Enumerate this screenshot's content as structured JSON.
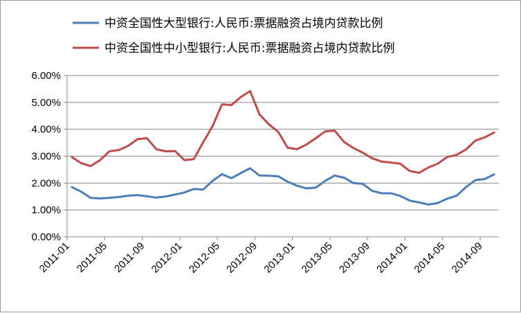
{
  "chart_data": {
    "type": "line",
    "title": "",
    "xlabel": "",
    "ylabel": "",
    "ylim": [
      0,
      0.06
    ],
    "ytick_values": [
      0,
      0.01,
      0.02,
      0.03,
      0.04,
      0.05,
      0.06
    ],
    "ytick_labels": [
      "0.00%",
      "1.00%",
      "2.00%",
      "3.00%",
      "4.00%",
      "5.00%",
      "6.00%"
    ],
    "x": [
      "2011-01",
      "2011-02",
      "2011-03",
      "2011-04",
      "2011-05",
      "2011-06",
      "2011-07",
      "2011-08",
      "2011-09",
      "2011-10",
      "2011-11",
      "2011-12",
      "2012-01",
      "2012-02",
      "2012-03",
      "2012-04",
      "2012-05",
      "2012-06",
      "2012-07",
      "2012-08",
      "2012-09",
      "2012-10",
      "2012-11",
      "2012-12",
      "2013-01",
      "2013-02",
      "2013-03",
      "2013-04",
      "2013-05",
      "2013-06",
      "2013-07",
      "2013-08",
      "2013-09",
      "2013-10",
      "2013-11",
      "2013-12",
      "2014-01",
      "2014-02",
      "2014-03",
      "2014-04",
      "2014-05",
      "2014-06",
      "2014-07",
      "2014-08",
      "2014-09",
      "2014-10"
    ],
    "xtick_labels": [
      "2011-01",
      "2011-05",
      "2011-09",
      "2012-01",
      "2012-05",
      "2012-09",
      "2013-01",
      "2013-05",
      "2013-09",
      "2014-01",
      "2014-05",
      "2014-09"
    ],
    "grid": "horizontal",
    "legend_position": "top",
    "series": [
      {
        "name": "中资全国性大型银行:人民币:票据融资占境内贷款比例",
        "color": "#4a7ebb",
        "values": [
          0.0185,
          0.0168,
          0.0145,
          0.0143,
          0.0145,
          0.0148,
          0.0153,
          0.0155,
          0.0151,
          0.0146,
          0.015,
          0.0157,
          0.0165,
          0.0178,
          0.0176,
          0.0208,
          0.0233,
          0.0218,
          0.0237,
          0.0255,
          0.0228,
          0.0227,
          0.0225,
          0.0205,
          0.019,
          0.018,
          0.0183,
          0.0208,
          0.0228,
          0.022,
          0.02,
          0.0197,
          0.0171,
          0.0162,
          0.0162,
          0.0152,
          0.0135,
          0.0128,
          0.012,
          0.0126,
          0.0142,
          0.0153,
          0.0185,
          0.0211,
          0.0215,
          0.0232
        ]
      },
      {
        "name": "中资全国性中小型银行:人民币:票据融资占境内贷款比例",
        "color": "#be4b48",
        "values": [
          0.0297,
          0.0274,
          0.0263,
          0.0285,
          0.0318,
          0.0323,
          0.0338,
          0.0363,
          0.0367,
          0.0326,
          0.0318,
          0.0319,
          0.0285,
          0.0289,
          0.0352,
          0.0412,
          0.0493,
          0.049,
          0.052,
          0.0542,
          0.0455,
          0.0418,
          0.039,
          0.0331,
          0.0326,
          0.0343,
          0.0367,
          0.0392,
          0.0395,
          0.0353,
          0.033,
          0.0313,
          0.0292,
          0.028,
          0.0276,
          0.0272,
          0.0245,
          0.0238,
          0.0258,
          0.0272,
          0.0297,
          0.0305,
          0.0325,
          0.0358,
          0.037,
          0.0388
        ]
      }
    ]
  }
}
